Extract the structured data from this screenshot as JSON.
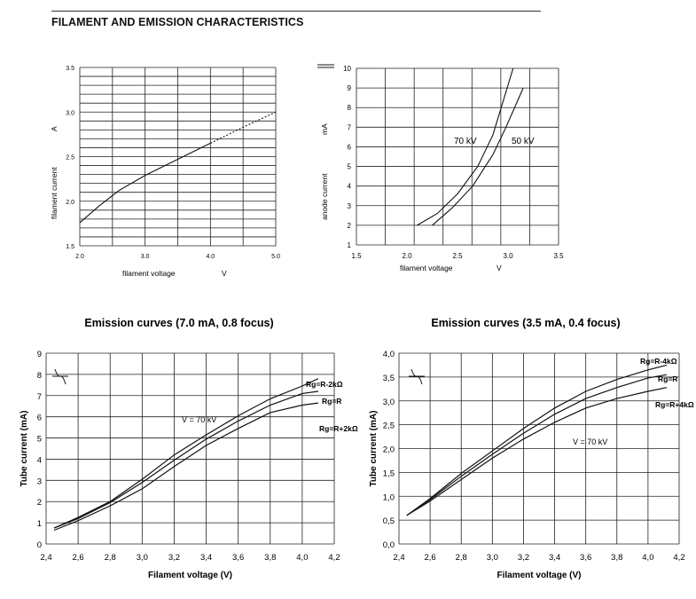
{
  "page": {
    "title": "FILAMENT AND EMISSION CHARACTERISTICS"
  },
  "chart_data": [
    {
      "id": "filament",
      "type": "line",
      "title": "",
      "xlabel": "filament voltage",
      "xunit": "V",
      "ylabel": "filament current",
      "yunit": "A",
      "xlim": [
        2.0,
        5.0
      ],
      "ylim": [
        1.5,
        3.5
      ],
      "x_ticks": [
        "2.0",
        "3.0",
        "4.0",
        "5.0"
      ],
      "y_ticks": [
        "1.5",
        "2.0",
        "2.5",
        "3.0",
        "3.5"
      ],
      "series": [
        {
          "solid": [
            [
              2.0,
              1.76
            ],
            [
              2.3,
              1.95
            ],
            [
              2.6,
              2.12
            ],
            [
              3.0,
              2.29
            ],
            [
              3.5,
              2.47
            ],
            [
              4.0,
              2.65
            ]
          ],
          "dashed": [
            [
              4.0,
              2.65
            ],
            [
              4.5,
              2.83
            ],
            [
              5.0,
              3.0
            ]
          ]
        }
      ]
    },
    {
      "id": "anode",
      "type": "line",
      "title": "",
      "xlabel": "filament voltage",
      "xunit": "V",
      "ylabel": "anode current",
      "yunit": "mA",
      "xlim": [
        1.5,
        3.5
      ],
      "ylim": [
        1,
        10
      ],
      "x_ticks": [
        "1.5",
        "2.0",
        "2.5",
        "3.0",
        "3.5"
      ],
      "y_ticks": [
        "1",
        "2",
        "3",
        "4",
        "5",
        "6",
        "7",
        "8",
        "9",
        "10"
      ],
      "series": [
        {
          "name": "70 kV",
          "points": [
            [
              2.1,
              2.0
            ],
            [
              2.3,
              2.6
            ],
            [
              2.5,
              3.6
            ],
            [
              2.7,
              5.0
            ],
            [
              2.85,
              6.6
            ],
            [
              2.95,
              8.3
            ],
            [
              3.05,
              10.0
            ]
          ]
        },
        {
          "name": "50 kV",
          "points": [
            [
              2.25,
              2.0
            ],
            [
              2.45,
              2.9
            ],
            [
              2.65,
              4.0
            ],
            [
              2.85,
              5.6
            ],
            [
              2.98,
              7.0
            ],
            [
              3.15,
              9.0
            ]
          ]
        }
      ]
    },
    {
      "id": "emission7",
      "type": "line",
      "title": "Emission curves (7.0 mA, 0.8 focus)",
      "xlabel": "Filament voltage (V)",
      "ylabel": "Tube current (mA)",
      "xlim": [
        2.4,
        4.2
      ],
      "ylim": [
        0,
        9
      ],
      "x_ticks": [
        "2,4",
        "2,6",
        "2,8",
        "3,0",
        "3,2",
        "3,4",
        "3,6",
        "3,8",
        "4,0",
        "4,2"
      ],
      "y_ticks": [
        "0",
        "1",
        "2",
        "3",
        "4",
        "5",
        "6",
        "7",
        "8",
        "9"
      ],
      "annotation": "V = 70 kV",
      "series": [
        {
          "name": "Rg=R-2kΩ",
          "points": [
            [
              2.45,
              0.75
            ],
            [
              2.6,
              1.25
            ],
            [
              2.8,
              2.0
            ],
            [
              3.0,
              3.05
            ],
            [
              3.2,
              4.2
            ],
            [
              3.4,
              5.15
            ],
            [
              3.6,
              6.05
            ],
            [
              3.8,
              6.85
            ],
            [
              4.0,
              7.45
            ],
            [
              4.1,
              7.8
            ]
          ]
        },
        {
          "name": "Rg=R",
          "points": [
            [
              2.45,
              0.75
            ],
            [
              2.6,
              1.2
            ],
            [
              2.8,
              1.95
            ],
            [
              3.0,
              2.9
            ],
            [
              3.2,
              3.95
            ],
            [
              3.4,
              4.95
            ],
            [
              3.6,
              5.8
            ],
            [
              3.8,
              6.55
            ],
            [
              4.0,
              7.1
            ],
            [
              4.1,
              7.2
            ]
          ]
        },
        {
          "name": "Rg=R+2kΩ",
          "points": [
            [
              2.45,
              0.65
            ],
            [
              2.6,
              1.1
            ],
            [
              2.8,
              1.8
            ],
            [
              3.0,
              2.6
            ],
            [
              3.2,
              3.65
            ],
            [
              3.4,
              4.65
            ],
            [
              3.6,
              5.45
            ],
            [
              3.8,
              6.2
            ],
            [
              4.0,
              6.55
            ],
            [
              4.1,
              6.65
            ]
          ]
        }
      ]
    },
    {
      "id": "emission35",
      "type": "line",
      "title": "Emission curves (3.5 mA, 0.4 focus)",
      "xlabel": "Filament voltage (V)",
      "ylabel": "Tube current (mA)",
      "xlim": [
        2.4,
        4.2
      ],
      "ylim": [
        0,
        4
      ],
      "x_ticks": [
        "2,4",
        "2,6",
        "2,8",
        "3,0",
        "3,2",
        "3,4",
        "3,6",
        "3,8",
        "4,0",
        "4,2"
      ],
      "y_ticks": [
        "0,0",
        "0,5",
        "1,0",
        "1,5",
        "2,0",
        "2,5",
        "3,0",
        "3,5",
        "4,0"
      ],
      "annotation": "V = 70 kV",
      "series": [
        {
          "name": "Rg=R-4kΩ",
          "points": [
            [
              2.45,
              0.6
            ],
            [
              2.6,
              0.95
            ],
            [
              2.8,
              1.48
            ],
            [
              3.0,
              1.95
            ],
            [
              3.2,
              2.42
            ],
            [
              3.4,
              2.85
            ],
            [
              3.6,
              3.2
            ],
            [
              3.8,
              3.45
            ],
            [
              4.0,
              3.65
            ],
            [
              4.12,
              3.75
            ]
          ]
        },
        {
          "name": "Rg=R",
          "points": [
            [
              2.45,
              0.6
            ],
            [
              2.6,
              0.93
            ],
            [
              2.8,
              1.42
            ],
            [
              3.0,
              1.88
            ],
            [
              3.2,
              2.32
            ],
            [
              3.4,
              2.72
            ],
            [
              3.6,
              3.05
            ],
            [
              3.8,
              3.28
            ],
            [
              4.0,
              3.48
            ],
            [
              4.12,
              3.55
            ]
          ]
        },
        {
          "name": "Rg=R+4kΩ",
          "points": [
            [
              2.45,
              0.6
            ],
            [
              2.6,
              0.9
            ],
            [
              2.8,
              1.35
            ],
            [
              3.0,
              1.8
            ],
            [
              3.2,
              2.2
            ],
            [
              3.4,
              2.55
            ],
            [
              3.6,
              2.85
            ],
            [
              3.8,
              3.05
            ],
            [
              4.0,
              3.2
            ],
            [
              4.12,
              3.28
            ]
          ]
        }
      ]
    }
  ]
}
